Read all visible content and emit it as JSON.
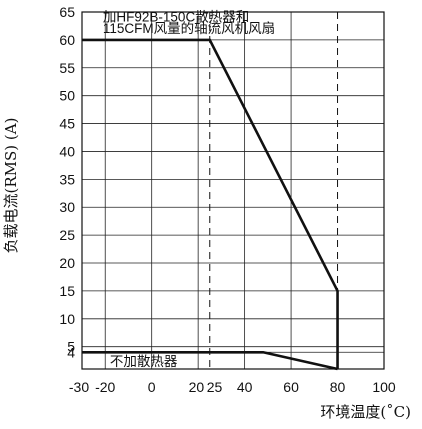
{
  "chart_data": {
    "type": "line",
    "title": "",
    "xlabel": "环境温度(˚C)",
    "ylabel": "负载电流(RMS) (A)",
    "xlim": [
      -30,
      100
    ],
    "ylim": [
      1,
      65
    ],
    "x_ticks": [
      -30,
      -20,
      0,
      20,
      25,
      40,
      60,
      80,
      100
    ],
    "x_tick_labels": [
      "-30",
      "-20",
      "0",
      "20",
      "25",
      "40",
      "60",
      "80",
      "100"
    ],
    "y_ticks": [
      4,
      5,
      10,
      15,
      20,
      25,
      30,
      35,
      40,
      45,
      50,
      55,
      60,
      65
    ],
    "y_tick_labels": [
      "4",
      "5",
      "10",
      "15",
      "20",
      "25",
      "30",
      "35",
      "40",
      "45",
      "50",
      "55",
      "60",
      "65"
    ],
    "grid": true,
    "series": [
      {
        "name": "加HF92B-150C散热器和115CFM风量的轴流风机风扇",
        "x": [
          -30,
          25,
          80,
          80
        ],
        "y": [
          60,
          60,
          15,
          1
        ]
      },
      {
        "name": "不加散热器",
        "x": [
          -30,
          48,
          80
        ],
        "y": [
          4,
          4,
          1
        ]
      }
    ],
    "reference_lines": [
      {
        "axis": "x",
        "value": 25,
        "style": "dashed"
      },
      {
        "axis": "x",
        "value": 80,
        "style": "dashed"
      }
    ],
    "annotations": [
      {
        "text": "加HF92B-150C散热器和",
        "series": 0
      },
      {
        "text": "115CFM风量的轴流风机风扇",
        "series": 0
      },
      {
        "text": "不加散热器",
        "series": 1
      }
    ]
  }
}
